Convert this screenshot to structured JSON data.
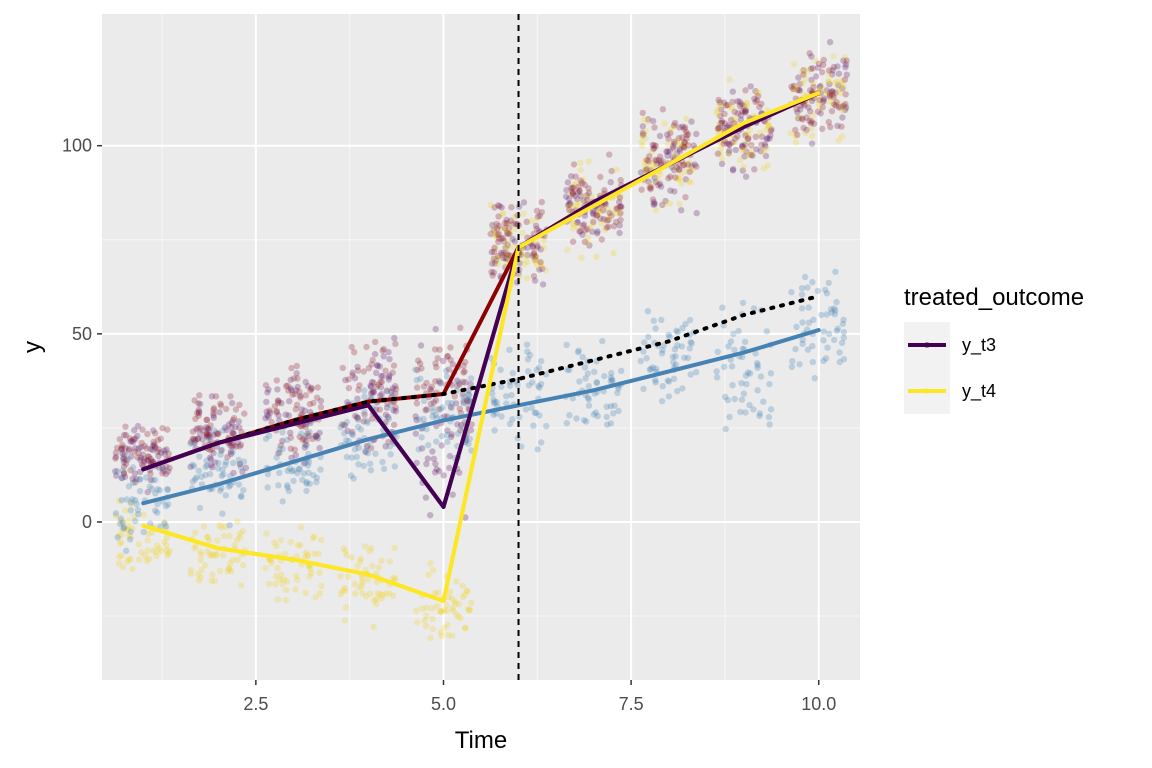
{
  "chart_data": {
    "type": "scatter",
    "xlabel": "Time",
    "ylabel": "y",
    "xlim": [
      0.45,
      10.55
    ],
    "ylim": [
      -42,
      135
    ],
    "x_ticks": [
      2.5,
      5.0,
      7.5,
      10.0
    ],
    "x_tick_labels": [
      "2.5",
      "5.0",
      "7.5",
      "10.0"
    ],
    "y_ticks": [
      0,
      50,
      100
    ],
    "y_tick_labels": [
      "0",
      "50",
      "100"
    ],
    "grid": true,
    "panel_background": "#ebebeb",
    "vline": {
      "x": 6,
      "style": "dashed",
      "color": "#000000"
    },
    "legend": {
      "title": "treated_outcome",
      "position": "right",
      "entries": [
        {
          "label": "y_t3",
          "color": "#440154"
        },
        {
          "label": "y_t4",
          "color": "#fde725"
        }
      ]
    },
    "point_clouds": [
      {
        "group": "y_t3",
        "color": "#5b1163",
        "bands": [
          [
            1,
            7,
            26
          ],
          [
            2,
            10,
            36
          ],
          [
            3,
            14,
            43
          ],
          [
            4,
            16,
            52
          ],
          [
            5,
            -8,
            52
          ],
          [
            6,
            62,
            86
          ],
          [
            7,
            70,
            98
          ],
          [
            8,
            80,
            110
          ],
          [
            9,
            90,
            118
          ],
          [
            10,
            100,
            128
          ]
        ]
      },
      {
        "group": "y_t4",
        "color": "#f2d426",
        "bands": [
          [
            1,
            -14,
            6
          ],
          [
            2,
            -20,
            2
          ],
          [
            3,
            -24,
            2
          ],
          [
            4,
            -28,
            -4
          ],
          [
            5,
            -35,
            -10
          ],
          [
            6,
            62,
            86
          ],
          [
            7,
            70,
            98
          ],
          [
            8,
            80,
            110
          ],
          [
            9,
            90,
            118
          ],
          [
            10,
            100,
            128
          ]
        ]
      },
      {
        "group": "other_treated",
        "color": "#8b1a2b",
        "bands": [
          [
            1,
            8,
            27
          ],
          [
            2,
            12,
            37
          ],
          [
            3,
            16,
            43
          ],
          [
            4,
            18,
            52
          ],
          [
            5,
            20,
            52
          ],
          [
            6,
            62,
            88
          ],
          [
            7,
            72,
            98
          ],
          [
            8,
            82,
            112
          ],
          [
            9,
            92,
            118
          ],
          [
            10,
            100,
            126
          ]
        ]
      },
      {
        "group": "control",
        "color": "#4682b4",
        "bands": [
          [
            1,
            -8,
            20
          ],
          [
            2,
            -2,
            26
          ],
          [
            3,
            2,
            28
          ],
          [
            4,
            10,
            38
          ],
          [
            5,
            14,
            42
          ],
          [
            6,
            16,
            52
          ],
          [
            7,
            22,
            50
          ],
          [
            8,
            28,
            58
          ],
          [
            9,
            22,
            62
          ],
          [
            10,
            38,
            68
          ]
        ]
      }
    ],
    "series": [
      {
        "name": "y_t3",
        "color": "#440154",
        "style": "solid",
        "x": [
          1,
          2,
          3,
          4,
          5,
          6,
          7,
          8,
          9,
          10
        ],
        "y": [
          14,
          21,
          26,
          31,
          4,
          73,
          85,
          95,
          105,
          114
        ]
      },
      {
        "name": "y_t4",
        "color": "#fde725",
        "style": "solid",
        "x": [
          1,
          2,
          3,
          4,
          5,
          6,
          7,
          8,
          9,
          10
        ],
        "y": [
          -1,
          -7,
          -10,
          -14,
          -21,
          73,
          84,
          95,
          106,
          114
        ]
      },
      {
        "color": "#8b0000",
        "style": "solid",
        "x": [
          1,
          2,
          3,
          4,
          5,
          6,
          7,
          8,
          9,
          10
        ],
        "y": [
          14,
          21,
          27,
          32,
          34,
          73,
          85,
          95,
          105,
          114
        ]
      },
      {
        "color": "#4682b4",
        "style": "solid",
        "x": [
          1,
          2,
          3,
          4,
          5,
          6,
          7,
          8,
          9,
          10
        ],
        "y": [
          5,
          10,
          16,
          22,
          27,
          31,
          35,
          40,
          45,
          51
        ]
      },
      {
        "color": "#000000",
        "style": "dotted",
        "x": [
          1,
          2,
          3,
          4,
          5,
          6,
          7,
          8,
          9,
          10
        ],
        "y": [
          14,
          21,
          27,
          32,
          34,
          38,
          43,
          48,
          55,
          60
        ]
      }
    ]
  }
}
